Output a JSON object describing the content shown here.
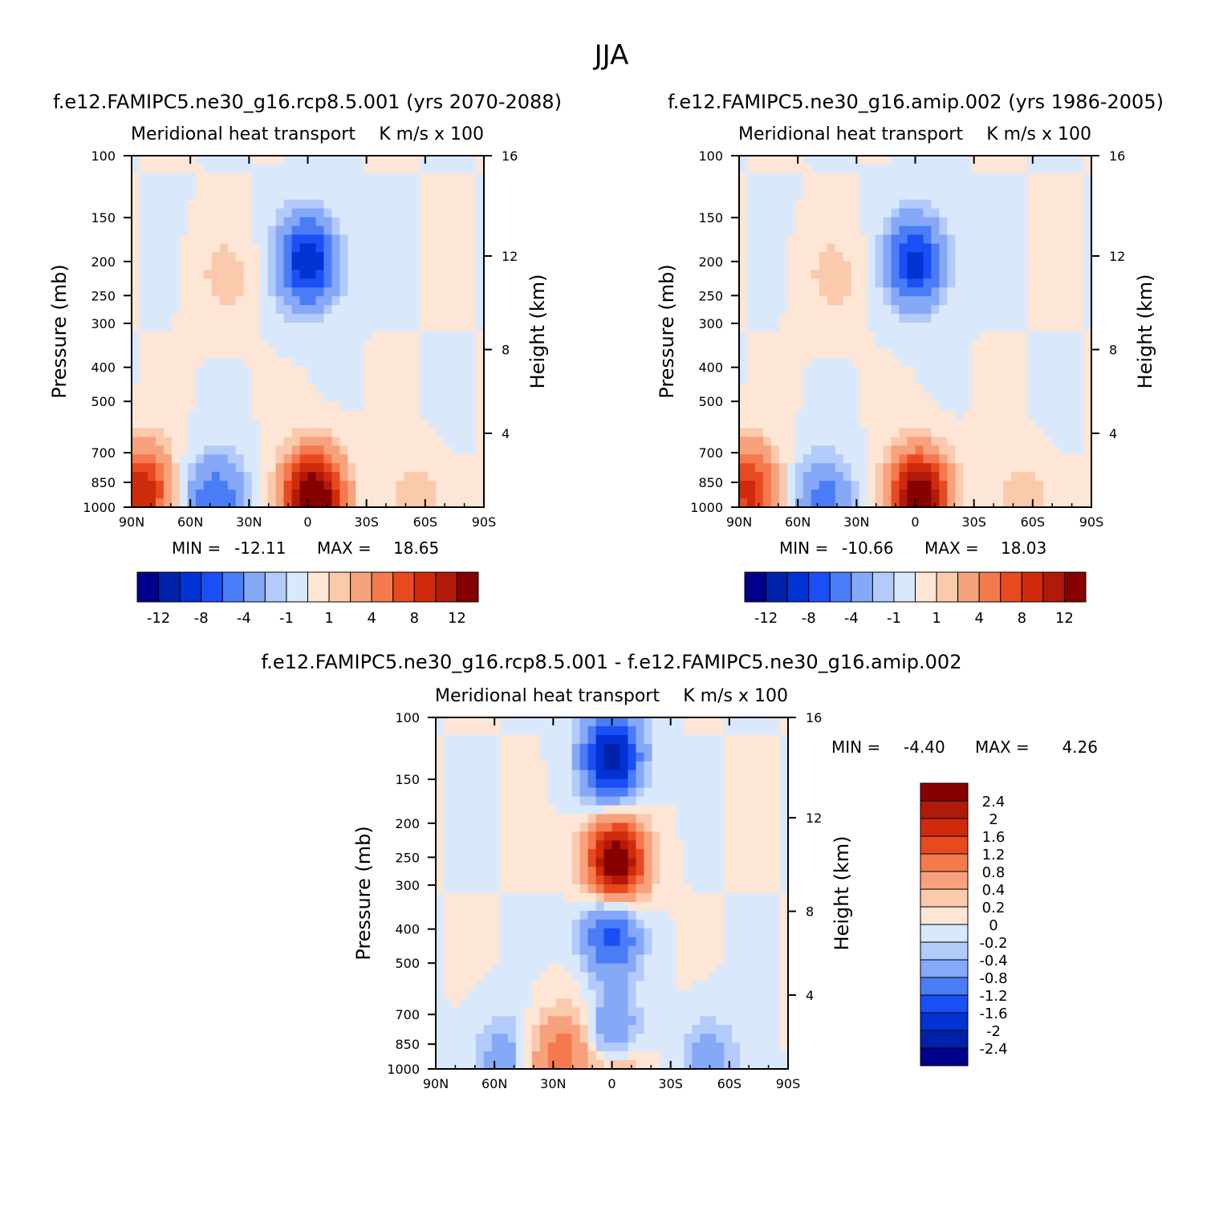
{
  "figure": {
    "title": "JJA",
    "colors": {
      "background": "#ffffff",
      "axes": "#000000",
      "palette": [
        "#00008a",
        "#0022aa",
        "#0033d2",
        "#1a4ff5",
        "#4a7cf7",
        "#85a8f7",
        "#b3cbfa",
        "#dae8fb",
        "#fde6d6",
        "#fbc9ac",
        "#f7a27c",
        "#f47a4d",
        "#e84a20",
        "#d02a0d",
        "#b01a08",
        "#860000"
      ]
    },
    "panels": [
      {
        "case": "f.e12.FAMIPC5.ne30_g16.rcp8.5.001 (yrs 2070-2088)",
        "left_title": "Meridional heat transport",
        "right_title": "K m/s x 100",
        "stats": {
          "min_label": "MIN =",
          "min": "-12.11",
          "max_label": "MAX =",
          "max": "18.65"
        },
        "colorbar_labels": [
          "-12",
          "-8",
          "-4",
          "-1",
          "1",
          "4",
          "8",
          "12"
        ]
      },
      {
        "case": "f.e12.FAMIPC5.ne30_g16.amip.002 (yrs 1986-2005)",
        "left_title": "Meridional heat transport",
        "right_title": "K m/s x 100",
        "stats": {
          "min_label": "MIN =",
          "min": "-10.66",
          "max_label": "MAX =",
          "max": "18.03"
        },
        "colorbar_labels": [
          "-12",
          "-8",
          "-4",
          "-1",
          "1",
          "4",
          "8",
          "12"
        ]
      },
      {
        "case": "f.e12.FAMIPC5.ne30_g16.rcp8.5.001 - f.e12.FAMIPC5.ne30_g16.amip.002",
        "left_title": "Meridional heat transport",
        "right_title": "K m/s x 100",
        "stats": {
          "min_label": "MIN =",
          "min": "-4.40",
          "max_label": "MAX =",
          "max": "4.26"
        },
        "colorbar_labels": [
          "2.4",
          "2",
          "1.6",
          "1.2",
          "0.8",
          "0.4",
          "0.2",
          "0",
          "-0.2",
          "-0.4",
          "-0.8",
          "-1.2",
          "-1.6",
          "-2",
          "-2.4"
        ]
      }
    ]
  },
  "chart_data": [
    {
      "type": "heatmap",
      "title": "f.e12.FAMIPC5.ne30_g16.rcp8.5.001 (yrs 2070-2088)",
      "subtitle_left": "Meridional heat transport",
      "subtitle_right": "K m/s x 100",
      "xlabel": "",
      "ylabel": "Pressure (mb)",
      "ylabel_right": "Height (km)",
      "x_ticklabels": [
        "90N",
        "60N",
        "30N",
        "0",
        "30S",
        "60S",
        "90S"
      ],
      "y_ticks": [
        100,
        150,
        200,
        250,
        300,
        400,
        500,
        700,
        850,
        1000
      ],
      "y_right_ticks": [
        16,
        12,
        8,
        4
      ],
      "ylim": [
        1000,
        100
      ],
      "color_levels": [
        -12,
        -10,
        -8,
        -6,
        -4,
        -2,
        -1,
        0,
        1,
        2,
        4,
        6,
        8,
        10,
        12
      ],
      "min": -12.11,
      "max": 18.65,
      "features": [
        {
          "x": 0,
          "p": 200,
          "value": -10
        },
        {
          "x": -42,
          "p": 220,
          "value": 1.5
        },
        {
          "x": 3,
          "p": 940,
          "value": 16
        },
        {
          "x": -47,
          "p": 960,
          "value": -6
        },
        {
          "x": -85,
          "p": 900,
          "value": 10
        },
        {
          "x": 55,
          "p": 980,
          "value": 2
        }
      ]
    },
    {
      "type": "heatmap",
      "title": "f.e12.FAMIPC5.ne30_g16.amip.002 (yrs 1986-2005)",
      "subtitle_left": "Meridional heat transport",
      "subtitle_right": "K m/s x 100",
      "xlabel": "",
      "ylabel": "Pressure (mb)",
      "ylabel_right": "Height (km)",
      "x_ticklabels": [
        "90N",
        "60N",
        "30N",
        "0",
        "30S",
        "60S",
        "90S"
      ],
      "y_ticks": [
        100,
        150,
        200,
        250,
        300,
        400,
        500,
        700,
        850,
        1000
      ],
      "y_right_ticks": [
        16,
        12,
        8,
        4
      ],
      "ylim": [
        1000,
        100
      ],
      "color_levels": [
        -12,
        -10,
        -8,
        -6,
        -4,
        -2,
        -1,
        0,
        1,
        2,
        4,
        6,
        8,
        10,
        12
      ],
      "min": -10.66,
      "max": 18.03,
      "features": [
        {
          "x": 0,
          "p": 200,
          "value": -9
        },
        {
          "x": -42,
          "p": 220,
          "value": 1.5
        },
        {
          "x": 2,
          "p": 940,
          "value": 15
        },
        {
          "x": -47,
          "p": 960,
          "value": -5
        },
        {
          "x": -85,
          "p": 900,
          "value": 9
        },
        {
          "x": 55,
          "p": 980,
          "value": 2
        }
      ]
    },
    {
      "type": "heatmap",
      "title": "f.e12.FAMIPC5.ne30_g16.rcp8.5.001 - f.e12.FAMIPC5.ne30_g16.amip.002",
      "subtitle_left": "Meridional heat transport",
      "subtitle_right": "K m/s x 100",
      "xlabel": "",
      "ylabel": "Pressure (mb)",
      "ylabel_right": "Height (km)",
      "x_ticklabels": [
        "90N",
        "60N",
        "30N",
        "0",
        "30S",
        "60S",
        "90S"
      ],
      "y_ticks": [
        100,
        150,
        200,
        250,
        300,
        400,
        500,
        700,
        850,
        1000
      ],
      "y_right_ticks": [
        16,
        12,
        8,
        4
      ],
      "ylim": [
        1000,
        100
      ],
      "color_levels": [
        -2.4,
        -2,
        -1.6,
        -1.2,
        -0.8,
        -0.4,
        -0.2,
        0,
        0.2,
        0.4,
        0.8,
        1.2,
        1.6,
        2,
        2.4
      ],
      "min": -4.4,
      "max": 4.26,
      "features": [
        {
          "x": 0,
          "p": 130,
          "value": -2.4
        },
        {
          "x": 2,
          "p": 260,
          "value": 3
        },
        {
          "x": 0,
          "p": 400,
          "value": -1.6
        },
        {
          "x": 0,
          "p": 850,
          "value": -1.6
        },
        {
          "x": -20,
          "p": 880,
          "value": 0.8
        },
        {
          "x": 2,
          "p": 990,
          "value": 1.4
        },
        {
          "x": -35,
          "p": 960,
          "value": 0.5
        },
        {
          "x": -55,
          "p": 930,
          "value": -0.6
        },
        {
          "x": 50,
          "p": 960,
          "value": -0.6
        }
      ]
    }
  ]
}
